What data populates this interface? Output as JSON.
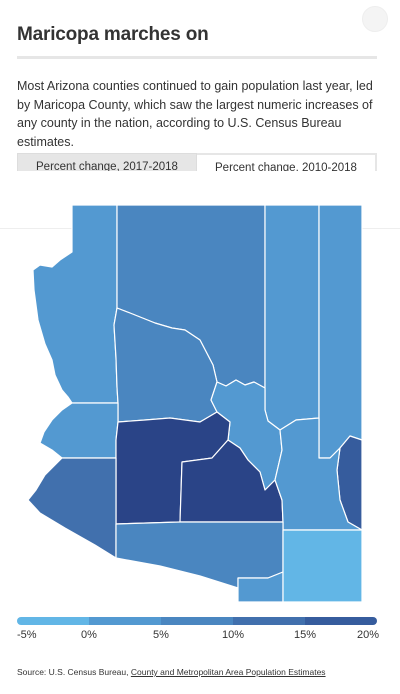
{
  "title": "Maricopa marches on",
  "description": "Most Arizona counties continued to gain population last year, led by Maricopa County, which saw the largest numeric increases of any county in the nation, according to U.S. Census Bureau estimates.",
  "tabs": [
    {
      "label": "Percent change, 2017-2018",
      "selected": false
    },
    {
      "label": "Percent change, 2010-2018",
      "selected": true
    }
  ],
  "colors": {
    "class_0": "#62b6e6",
    "class_1": "#5399d1",
    "class_2": "#4a86c0",
    "class_3": "#4170ad",
    "class_4": "#365c9d",
    "class_5": "#2a4487"
  },
  "legend": {
    "labels": [
      "-5%",
      "0%",
      "5%",
      "10%",
      "15%",
      "20%"
    ]
  },
  "map": {
    "counties": [
      {
        "id": "mohave",
        "color_class": "class_1"
      },
      {
        "id": "coconino",
        "color_class": "class_2"
      },
      {
        "id": "navajo",
        "color_class": "class_1"
      },
      {
        "id": "apache",
        "color_class": "class_1"
      },
      {
        "id": "yavapai",
        "color_class": "class_2"
      },
      {
        "id": "la-paz",
        "color_class": "class_1"
      },
      {
        "id": "gila",
        "color_class": "class_1"
      },
      {
        "id": "maricopa",
        "color_class": "class_5"
      },
      {
        "id": "pinal",
        "color_class": "class_5"
      },
      {
        "id": "greenlee",
        "color_class": "class_4"
      },
      {
        "id": "graham",
        "color_class": "class_1"
      },
      {
        "id": "yuma",
        "color_class": "class_3"
      },
      {
        "id": "pima",
        "color_class": "class_2"
      },
      {
        "id": "santa-cruz",
        "color_class": "class_1"
      },
      {
        "id": "cochise",
        "color_class": "class_0"
      }
    ]
  },
  "source": {
    "prefix": "Source: U.S. Census Bureau, ",
    "link_text": "County and Metropolitan Area Population Estimates"
  }
}
